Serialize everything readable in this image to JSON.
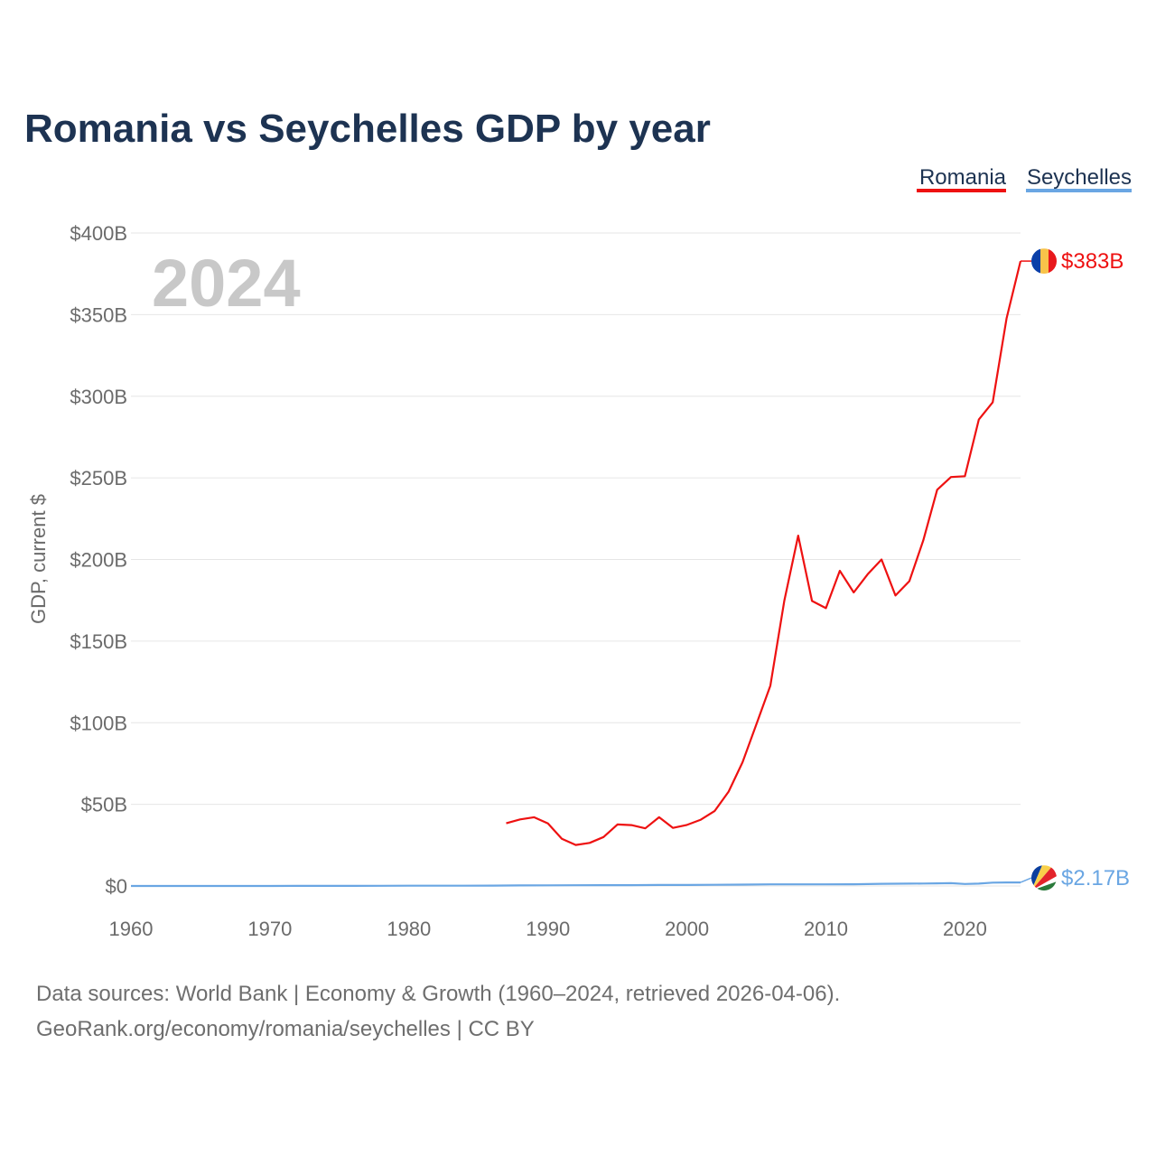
{
  "chart_data": {
    "type": "line",
    "title": "Romania vs Seychelles GDP by year",
    "ylabel": "GDP, current $",
    "xlabel": "",
    "year_watermark": "2024",
    "xlim": [
      1960,
      2024
    ],
    "ylim": [
      0,
      400
    ],
    "x_ticks": [
      1960,
      1970,
      1980,
      1990,
      2000,
      2010,
      2020
    ],
    "x_tick_labels": [
      "1960",
      "1970",
      "1980",
      "1990",
      "2000",
      "2010",
      "2020"
    ],
    "y_ticks": [
      0,
      50,
      100,
      150,
      200,
      250,
      300,
      350,
      400
    ],
    "y_tick_labels": [
      "$0",
      "$50B",
      "$100B",
      "$150B",
      "$200B",
      "$250B",
      "$300B",
      "$350B",
      "$400B"
    ],
    "legend": {
      "placement": "top-right",
      "entries": [
        "Romania",
        "Seychelles"
      ]
    },
    "series": [
      {
        "name": "Romania",
        "color": "#ee1111",
        "end_label": "$383B",
        "flag_icon": "romania-flag-icon",
        "x": [
          1987,
          1988,
          1989,
          1990,
          1991,
          1992,
          1993,
          1994,
          1995,
          1996,
          1997,
          1998,
          1999,
          2000,
          2001,
          2002,
          2003,
          2004,
          2005,
          2006,
          2007,
          2008,
          2009,
          2010,
          2011,
          2012,
          2013,
          2014,
          2015,
          2016,
          2017,
          2018,
          2019,
          2020,
          2021,
          2022,
          2023,
          2024
        ],
        "values": [
          38.4,
          40.8,
          42.1,
          38.3,
          28.9,
          25.1,
          26.4,
          30.0,
          37.7,
          37.3,
          35.3,
          42.1,
          35.6,
          37.4,
          40.6,
          46.0,
          57.8,
          75.8,
          99.2,
          122.7,
          174.6,
          214.6,
          174.6,
          170.2,
          193.1,
          179.8,
          190.9,
          200.0,
          177.9,
          186.7,
          211.7,
          242.7,
          250.5,
          251.0,
          285.7,
          296.3,
          347.9,
          382.8
        ]
      },
      {
        "name": "Seychelles",
        "color": "#6aa6e3",
        "end_label": "$2.17B",
        "flag_icon": "seychelles-flag-icon",
        "x": [
          1960,
          1962,
          1964,
          1966,
          1968,
          1970,
          1972,
          1974,
          1976,
          1978,
          1980,
          1982,
          1984,
          1986,
          1988,
          1990,
          1992,
          1994,
          1996,
          1998,
          2000,
          2002,
          2004,
          2006,
          2008,
          2010,
          2012,
          2014,
          2015,
          2016,
          2017,
          2018,
          2019,
          2020,
          2021,
          2022,
          2023,
          2024
        ],
        "values": [
          0.01,
          0.01,
          0.01,
          0.02,
          0.02,
          0.02,
          0.04,
          0.06,
          0.08,
          0.12,
          0.15,
          0.16,
          0.17,
          0.23,
          0.31,
          0.37,
          0.43,
          0.49,
          0.5,
          0.61,
          0.61,
          0.7,
          0.84,
          1.02,
          0.97,
          0.97,
          1.06,
          1.33,
          1.38,
          1.43,
          1.52,
          1.59,
          1.7,
          1.24,
          1.45,
          2.05,
          2.14,
          2.17
        ]
      }
    ]
  },
  "footer": {
    "source_line": "Data sources: World Bank | Economy & Growth (1960–2024, retrieved 2026-04-06).",
    "credit_line": "GeoRank.org/economy/romania/seychelles | CC BY"
  }
}
